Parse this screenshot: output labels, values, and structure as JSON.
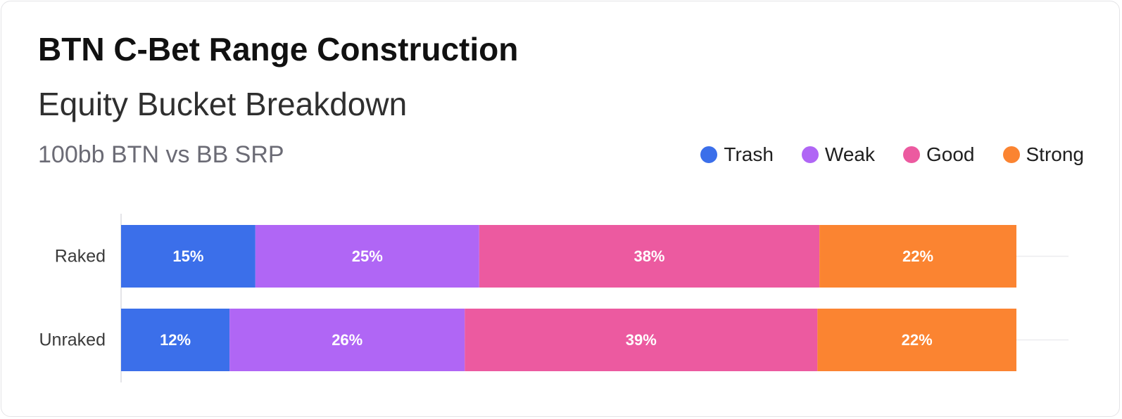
{
  "title": "BTN C-Bet Range Construction",
  "subtitle": "Equity Bucket Breakdown",
  "context": "100bb BTN vs BB SRP",
  "legend": [
    {
      "label": "Trash",
      "color": "#3b6fea"
    },
    {
      "label": "Weak",
      "color": "#b066f5"
    },
    {
      "label": "Good",
      "color": "#ec5aa0"
    },
    {
      "label": "Strong",
      "color": "#fb8431"
    }
  ],
  "chart_data": {
    "type": "bar",
    "orientation": "horizontal",
    "stacked": true,
    "normalized": true,
    "categories": [
      "Raked",
      "Unraked"
    ],
    "series": [
      {
        "name": "Trash",
        "values": [
          15,
          12
        ],
        "color": "#3b6fea"
      },
      {
        "name": "Weak",
        "values": [
          25,
          26
        ],
        "color": "#b066f5"
      },
      {
        "name": "Good",
        "values": [
          38,
          39
        ],
        "color": "#ec5aa0"
      },
      {
        "name": "Strong",
        "values": [
          22,
          22
        ],
        "color": "#fb8431"
      }
    ],
    "data_labels": [
      [
        "15%",
        "25%",
        "38%",
        "22%"
      ],
      [
        "12%",
        "26%",
        "39%",
        "22%"
      ]
    ],
    "xlim": [
      0,
      100
    ],
    "value_format": "percent",
    "legend_position": "top-right"
  }
}
